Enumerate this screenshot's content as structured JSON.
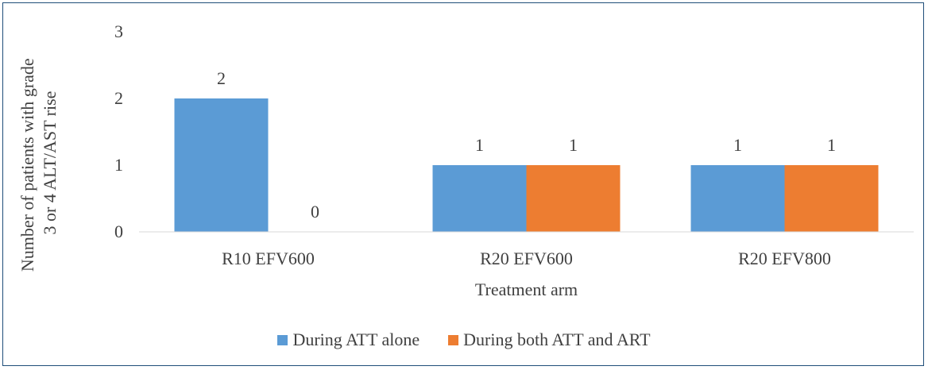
{
  "chart_data": {
    "type": "bar",
    "categories": [
      "R10 EFV600",
      "R20 EFV600",
      "R20 EFV800"
    ],
    "series": [
      {
        "name": "During ATT alone",
        "values": [
          2,
          1,
          1
        ],
        "color": "#5b9bd5"
      },
      {
        "name": "During both ATT and ART",
        "values": [
          0,
          1,
          1
        ],
        "color": "#ed7d31"
      }
    ],
    "data_labels": [
      [
        "2",
        "1",
        "1"
      ],
      [
        "0",
        "1",
        "1"
      ]
    ],
    "xlabel": "Treatment arm",
    "ylabel": "Number of patients with grade 3 or 4 ALT/AST rise",
    "ylabel_lines": [
      "Number of patients with grade",
      "3 or 4 ALT/AST rise"
    ],
    "yticks": [
      0,
      1,
      2,
      3
    ],
    "ylim": [
      0,
      3
    ],
    "grid": false,
    "legend_position": "bottom"
  }
}
